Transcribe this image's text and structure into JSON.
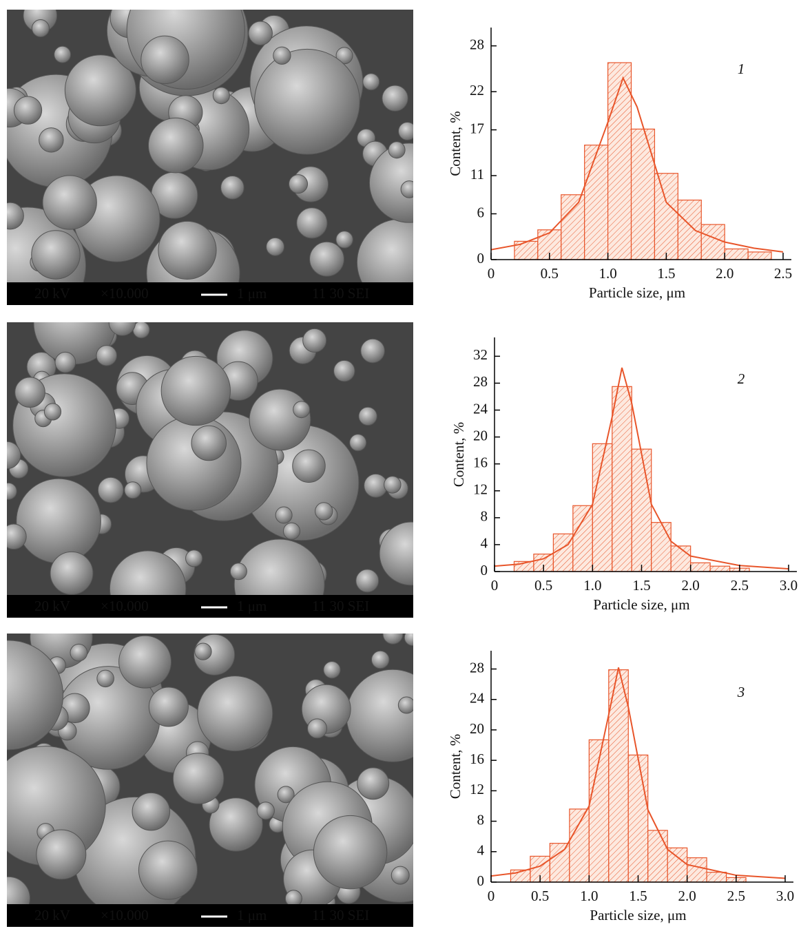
{
  "micrographs": [
    {
      "voltage": "20 kV",
      "magnification": "×10.000",
      "scale": "1 μm",
      "info": "11 30 SEI"
    },
    {
      "voltage": "20 kV",
      "magnification": "×10.000",
      "scale": "1 μm",
      "info": "11 30 SEI"
    },
    {
      "voltage": "20 kV",
      "magnification": "×10.000",
      "scale": "1 μm",
      "info": "11 30 SEI"
    }
  ],
  "chart_data": [
    {
      "type": "histogram",
      "annotation": "1",
      "xlabel": "Particle size, μm",
      "ylabel": "Content, %",
      "color": "#e8552a",
      "bins": [
        0.2,
        0.4,
        0.6,
        0.8,
        1.0,
        1.2,
        1.4,
        1.6,
        1.8,
        2.0,
        2.2,
        2.4
      ],
      "counts": [
        2.4,
        3.9,
        8.5,
        15,
        25.8,
        17.1,
        11.3,
        7.8,
        4.6,
        1.4,
        1.0
      ],
      "fit_x": [
        0,
        0.25,
        0.5,
        0.75,
        1.0,
        1.13,
        1.25,
        1.5,
        1.75,
        2.0,
        2.25,
        2.5
      ],
      "fit_values": [
        1.3,
        2,
        3.5,
        7.5,
        18,
        23.8,
        20,
        7.5,
        3.8,
        2.3,
        1.5,
        1.0
      ],
      "xlim": [
        0,
        2.5
      ],
      "ylim": [
        0,
        30.4
      ],
      "xticks": [
        0,
        0.5,
        {
          "value": 1,
          "label": "1.0"
        },
        1.5,
        {
          "value": 2,
          "label": "2.0"
        },
        2.5
      ],
      "yticks": [
        0,
        6,
        11,
        17,
        22,
        28
      ]
    },
    {
      "type": "histogram",
      "annotation": "2",
      "xlabel": "Particle size, μm",
      "ylabel": "Content, %",
      "color": "#e8552a",
      "bins": [
        0.2,
        0.4,
        0.6,
        0.8,
        1.0,
        1.2,
        1.4,
        1.6,
        1.8,
        2.0,
        2.2,
        2.4,
        2.6
      ],
      "counts": [
        1.5,
        2.6,
        5.6,
        9.8,
        19,
        27.5,
        18.2,
        7.3,
        3.8,
        1.3,
        0.8,
        0.5
      ],
      "fit_x": [
        0,
        0.25,
        0.5,
        0.75,
        1.0,
        1.2,
        1.3,
        1.4,
        1.6,
        1.8,
        2.0,
        2.5,
        3.0
      ],
      "fit_values": [
        0.8,
        1.1,
        1.9,
        4,
        10,
        23,
        30.3,
        25,
        10,
        4.5,
        2.3,
        0.9,
        0.4
      ],
      "xlim": [
        0,
        3.0
      ],
      "ylim": [
        0,
        34.8
      ],
      "xticks": [
        0,
        0.5,
        {
          "value": 1,
          "label": "1.0"
        },
        1.5,
        {
          "value": 2,
          "label": "2.0"
        },
        2.5,
        {
          "value": 3,
          "label": "3.0"
        }
      ],
      "yticks": [
        0,
        4,
        8,
        12,
        16,
        20,
        24,
        28,
        32
      ]
    },
    {
      "type": "histogram",
      "annotation": "3",
      "xlabel": "Particle size, μm",
      "ylabel": "Content, %",
      "color": "#e8552a",
      "bins": [
        0.2,
        0.4,
        0.6,
        0.8,
        1.0,
        1.2,
        1.4,
        1.6,
        1.8,
        2.0,
        2.2,
        2.4,
        2.6
      ],
      "counts": [
        1.6,
        3.4,
        5.1,
        9.6,
        18.7,
        27.9,
        16.7,
        6.8,
        4.5,
        3.2,
        1.3,
        0.6
      ],
      "fit_x": [
        0,
        0.25,
        0.5,
        0.75,
        1.0,
        1.2,
        1.3,
        1.4,
        1.6,
        1.8,
        2.0,
        2.5,
        3.0
      ],
      "fit_values": [
        0.8,
        1.2,
        2.1,
        4.3,
        10,
        22,
        28.2,
        23,
        9.5,
        4.3,
        2.3,
        0.9,
        0.5
      ],
      "xlim": [
        0,
        3.0
      ],
      "ylim": [
        0,
        30.4
      ],
      "xticks": [
        0,
        0.5,
        {
          "value": 1,
          "label": "1.0"
        },
        1.5,
        {
          "value": 2,
          "label": "2.0"
        },
        2.5,
        {
          "value": 3,
          "label": "3.0"
        }
      ],
      "yticks": [
        0,
        4,
        8,
        12,
        16,
        20,
        24,
        28
      ]
    }
  ]
}
